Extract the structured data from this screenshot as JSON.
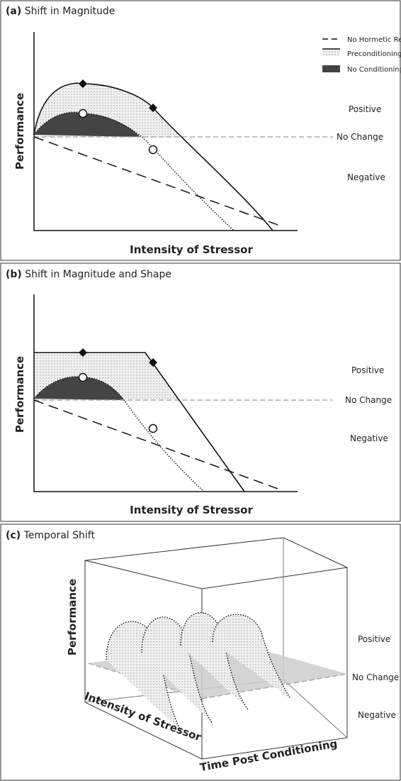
{
  "panels": [
    {
      "label": "(a)",
      "title": "Shift in Magnitude",
      "y_axis": "Performance",
      "x_axis": "Intensity of Stressor",
      "zones": [
        "Positive",
        "No Change",
        "Negative"
      ]
    },
    {
      "label": "(b)",
      "title": "Shift in Magnitude and Shape",
      "y_axis": "Performance",
      "x_axis": "Intensity of Stressor",
      "zones": [
        "Positive",
        "No Change",
        "Negative"
      ]
    },
    {
      "label": "(c)",
      "title": "Temporal Shift",
      "y_axis": "Performance",
      "x_axis": "Intensity of Stressor",
      "z_axis": "Time Post Conditioning",
      "zones": [
        "Positive",
        "No Change",
        "Negative"
      ]
    }
  ],
  "legend": [
    "No Hormetic Response",
    "Preconditioning",
    "No Conditioning"
  ]
}
